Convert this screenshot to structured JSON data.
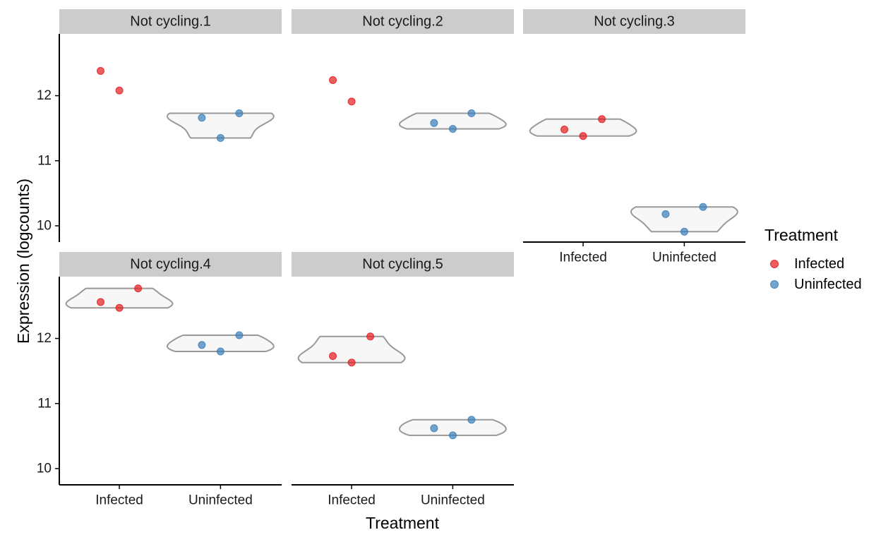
{
  "chart_data": {
    "type": "scatter",
    "subtype": "faceted violin with jittered points",
    "xlabel": "Treatment",
    "ylabel": "Expression (logcounts)",
    "categories": [
      "Infected",
      "Uninfected"
    ],
    "y_ticks": [
      10,
      11,
      12
    ],
    "ylim": [
      9.75,
      12.95
    ],
    "legend": {
      "title": "Treatment",
      "placement": "right",
      "entries": [
        {
          "name": "Infected",
          "color": "#E41A1C"
        },
        {
          "name": "Uninfected",
          "color": "#377EB8"
        }
      ]
    },
    "facets": [
      {
        "title": "Not cycling.1",
        "series": [
          {
            "name": "Infected",
            "values": [
              12.38,
              12.08
            ],
            "violin": false
          },
          {
            "name": "Uninfected",
            "values": [
              11.66,
              11.35,
              11.73
            ],
            "violin": true
          }
        ]
      },
      {
        "title": "Not cycling.2",
        "series": [
          {
            "name": "Infected",
            "values": [
              12.24,
              11.91
            ],
            "violin": false
          },
          {
            "name": "Uninfected",
            "values": [
              11.58,
              11.49,
              11.73
            ],
            "violin": true
          }
        ]
      },
      {
        "title": "Not cycling.3",
        "series": [
          {
            "name": "Infected",
            "values": [
              11.48,
              11.38,
              11.64
            ],
            "violin": true
          },
          {
            "name": "Uninfected",
            "values": [
              10.18,
              9.91,
              10.29
            ],
            "violin": true
          }
        ]
      },
      {
        "title": "Not cycling.4",
        "series": [
          {
            "name": "Infected",
            "values": [
              12.56,
              12.47,
              12.77
            ],
            "violin": true
          },
          {
            "name": "Uninfected",
            "values": [
              11.9,
              11.8,
              12.05
            ],
            "violin": true
          }
        ]
      },
      {
        "title": "Not cycling.5",
        "series": [
          {
            "name": "Infected",
            "values": [
              11.73,
              11.63,
              12.03
            ],
            "violin": true
          },
          {
            "name": "Uninfected",
            "values": [
              10.62,
              10.51,
              10.75
            ],
            "violin": true
          }
        ]
      }
    ]
  }
}
